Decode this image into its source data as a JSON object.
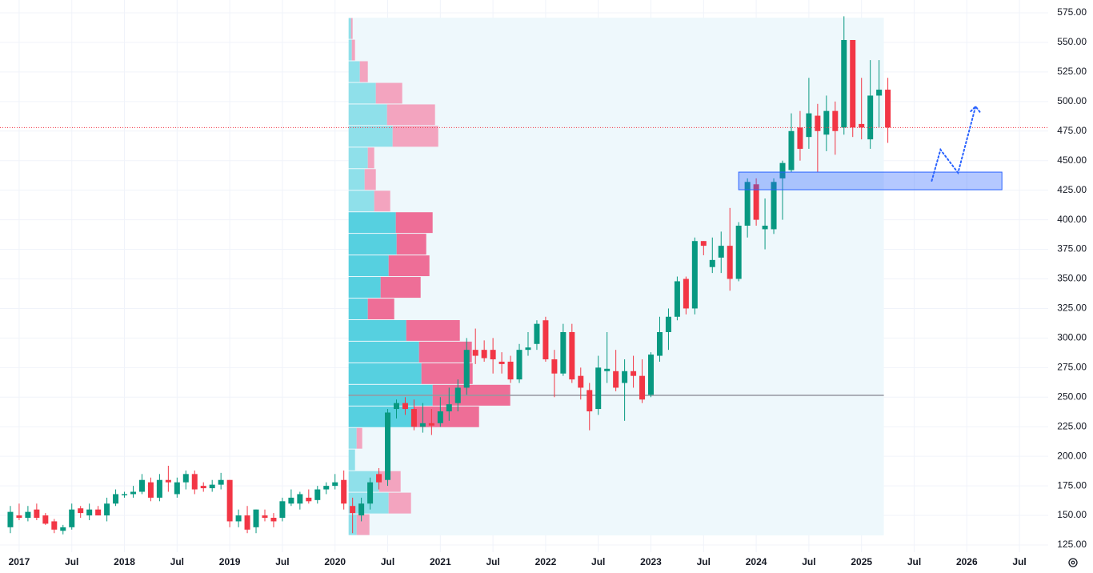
{
  "chart_data": {
    "type": "candlestick",
    "x": [
      "2016-12",
      "2017-01",
      "2017-02",
      "2017-03",
      "2017-04",
      "2017-05",
      "2017-06",
      "2017-07",
      "2017-08",
      "2017-09",
      "2017-10",
      "2017-11",
      "2017-12",
      "2018-01",
      "2018-02",
      "2018-03",
      "2018-04",
      "2018-05",
      "2018-06",
      "2018-07",
      "2018-08",
      "2018-09",
      "2018-10",
      "2018-11",
      "2018-12",
      "2019-01",
      "2019-02",
      "2019-03",
      "2019-04",
      "2019-05",
      "2019-06",
      "2019-07",
      "2019-08",
      "2019-09",
      "2019-10",
      "2019-11",
      "2019-12",
      "2020-01",
      "2020-02",
      "2020-03",
      "2020-04",
      "2020-05",
      "2020-06",
      "2020-07",
      "2020-08",
      "2020-09",
      "2020-10",
      "2020-11",
      "2020-12",
      "2021-01",
      "2021-02",
      "2021-03",
      "2021-04",
      "2021-05",
      "2021-06",
      "2021-07",
      "2021-08",
      "2021-09",
      "2021-10",
      "2021-11",
      "2021-12",
      "2022-01",
      "2022-02",
      "2022-03",
      "2022-04",
      "2022-05",
      "2022-06",
      "2022-07",
      "2022-08",
      "2022-09",
      "2022-10",
      "2022-11",
      "2022-12",
      "2023-01",
      "2023-02",
      "2023-03",
      "2023-04",
      "2023-05",
      "2023-06",
      "2023-07",
      "2023-08",
      "2023-09",
      "2023-10",
      "2023-11",
      "2023-12",
      "2024-01",
      "2024-02",
      "2024-03",
      "2024-04",
      "2024-05",
      "2024-06",
      "2024-07",
      "2024-08",
      "2024-09",
      "2024-10",
      "2024-11",
      "2024-12",
      "2025-01",
      "2025-02",
      "2025-03",
      "2025-04"
    ],
    "open": [
      140,
      150,
      148,
      155,
      150,
      145,
      137,
      140,
      156,
      150,
      155,
      150,
      160,
      167,
      168,
      170,
      178,
      165,
      180,
      168,
      178,
      185,
      175,
      173,
      176,
      180,
      145,
      150,
      140,
      150,
      148,
      148,
      160,
      160,
      165,
      163,
      172,
      175,
      180,
      158,
      150,
      160,
      185,
      180,
      240,
      245,
      240,
      225,
      228,
      228,
      238,
      245,
      258,
      290,
      290,
      290,
      280,
      280,
      265,
      290,
      295,
      315,
      282,
      270,
      305,
      268,
      256,
      240,
      272,
      272,
      262,
      272,
      268,
      252,
      285,
      305,
      318,
      350,
      325,
      382,
      360,
      368,
      378,
      350,
      395,
      430,
      392,
      392,
      435,
      442,
      478,
      470,
      488,
      472,
      492,
      478,
      552,
      481,
      468,
      505,
      510
    ],
    "high": [
      158,
      160,
      158,
      160,
      152,
      147,
      142,
      160,
      158,
      160,
      158,
      165,
      172,
      170,
      175,
      185,
      182,
      185,
      192,
      182,
      188,
      188,
      178,
      180,
      186,
      180,
      155,
      158,
      155,
      155,
      152,
      165,
      172,
      170,
      172,
      175,
      178,
      185,
      188,
      165,
      165,
      182,
      190,
      240,
      248,
      250,
      248,
      245,
      240,
      250,
      258,
      265,
      300,
      308,
      298,
      300,
      288,
      285,
      295,
      305,
      315,
      318,
      290,
      312,
      312,
      275,
      262,
      285,
      305,
      290,
      282,
      285,
      282,
      288,
      318,
      325,
      352,
      352,
      385,
      382,
      385,
      390,
      410,
      398,
      435,
      435,
      418,
      435,
      450,
      490,
      492,
      520,
      498,
      505,
      500,
      572,
      552,
      520,
      535,
      535,
      520
    ],
    "low": [
      135,
      146,
      145,
      146,
      142,
      135,
      134,
      138,
      148,
      146,
      150,
      145,
      158,
      165,
      165,
      168,
      162,
      162,
      170,
      165,
      172,
      168,
      170,
      170,
      172,
      140,
      140,
      135,
      135,
      145,
      140,
      145,
      158,
      155,
      160,
      160,
      168,
      172,
      155,
      135,
      145,
      155,
      172,
      175,
      232,
      235,
      222,
      220,
      218,
      225,
      230,
      238,
      252,
      278,
      280,
      270,
      270,
      262,
      262,
      285,
      290,
      280,
      250,
      268,
      262,
      248,
      222,
      235,
      262,
      255,
      230,
      258,
      245,
      250,
      280,
      290,
      315,
      320,
      320,
      370,
      355,
      355,
      340,
      348,
      385,
      395,
      375,
      388,
      400,
      440,
      450,
      460,
      440,
      458,
      455,
      472,
      470,
      468,
      460,
      478,
      465
    ],
    "close": [
      153,
      148,
      153,
      148,
      143,
      138,
      140,
      155,
      152,
      155,
      150,
      160,
      168,
      168,
      170,
      180,
      165,
      180,
      178,
      178,
      185,
      172,
      173,
      176,
      180,
      145,
      150,
      138,
      155,
      148,
      145,
      162,
      165,
      168,
      162,
      172,
      175,
      178,
      160,
      152,
      160,
      178,
      178,
      237,
      245,
      240,
      225,
      228,
      226,
      238,
      244,
      258,
      290,
      285,
      283,
      282,
      278,
      265,
      290,
      292,
      312,
      282,
      270,
      305,
      265,
      258,
      238,
      275,
      274,
      258,
      272,
      268,
      248,
      286,
      305,
      318,
      348,
      325,
      382,
      378,
      366,
      378,
      350,
      395,
      432,
      400,
      395,
      432,
      448,
      475,
      460,
      490,
      475,
      492,
      475,
      552,
      478,
      478,
      505,
      510,
      478
    ],
    "up_color": "#089981",
    "down_color": "#f23645",
    "xlim": [
      "2016-11",
      "2026-10"
    ],
    "ylim": [
      125,
      575
    ],
    "xticks": [
      {
        "value": "2017-01",
        "label": "2017"
      },
      {
        "value": "2017-07",
        "label": "Jul"
      },
      {
        "value": "2018-01",
        "label": "2018"
      },
      {
        "value": "2018-07",
        "label": "Jul"
      },
      {
        "value": "2019-01",
        "label": "2019"
      },
      {
        "value": "2019-07",
        "label": "Jul"
      },
      {
        "value": "2020-01",
        "label": "2020"
      },
      {
        "value": "2020-07",
        "label": "Jul"
      },
      {
        "value": "2021-01",
        "label": "2021"
      },
      {
        "value": "2021-07",
        "label": "Jul"
      },
      {
        "value": "2022-01",
        "label": "2022"
      },
      {
        "value": "2022-07",
        "label": "Jul"
      },
      {
        "value": "2023-01",
        "label": "2023"
      },
      {
        "value": "2023-07",
        "label": "Jul"
      },
      {
        "value": "2024-01",
        "label": "2024"
      },
      {
        "value": "2024-07",
        "label": "Jul"
      },
      {
        "value": "2025-01",
        "label": "2025"
      },
      {
        "value": "2025-07",
        "label": "Jul"
      },
      {
        "value": "2026-01",
        "label": "2026"
      },
      {
        "value": "2026-07",
        "label": "Jul"
      }
    ],
    "yticks": [
      {
        "value": 125,
        "label": "125.00"
      },
      {
        "value": 150,
        "label": "150.00"
      },
      {
        "value": 175,
        "label": "175.00"
      },
      {
        "value": 200,
        "label": "200.00"
      },
      {
        "value": 225,
        "label": "225.00"
      },
      {
        "value": 250,
        "label": "250.00"
      },
      {
        "value": 275,
        "label": "275.00"
      },
      {
        "value": 300,
        "label": "300.00"
      },
      {
        "value": 325,
        "label": "325.00"
      },
      {
        "value": 350,
        "label": "350.00"
      },
      {
        "value": 375,
        "label": "375.00"
      },
      {
        "value": 400,
        "label": "400.00"
      },
      {
        "value": 425,
        "label": "425.00"
      },
      {
        "value": 450,
        "label": "450.00"
      },
      {
        "value": 475,
        "label": "475.00"
      },
      {
        "value": 500,
        "label": "500.00"
      },
      {
        "value": 525,
        "label": "525.00"
      },
      {
        "value": 550,
        "label": "550.00"
      },
      {
        "value": 575,
        "label": "575.00"
      }
    ],
    "grid": true,
    "volume_profile": {
      "x_range": [
        "2020-02",
        "2025-04"
      ],
      "bins": [
        133.1,
        151.3,
        169.6,
        187.8,
        206.1,
        224.3,
        242.5,
        260.8,
        279,
        297.3,
        315.5,
        333.7,
        352,
        370.2,
        388.5,
        406.7,
        424.9,
        443.2,
        461.4,
        479.7,
        497.9,
        516.1,
        534.4,
        552.6,
        570.9
      ],
      "up": [
        10,
        50,
        38,
        8,
        10,
        82,
        105,
        91,
        88,
        72,
        24,
        40,
        50,
        60,
        59,
        32,
        20,
        24,
        55,
        48,
        34,
        14,
        4,
        3
      ],
      "down": [
        16,
        28,
        27,
        0,
        7,
        81,
        97,
        64,
        66,
        67,
        33,
        50,
        51,
        37,
        46,
        20,
        14,
        8,
        57,
        60,
        33,
        10,
        4,
        2
      ],
      "value_area": [
        224.3,
        406.7
      ],
      "poc": 251.5,
      "up_color": "#56d0e0",
      "down_color": "#ee6e97",
      "up_color_outside": "#8fe0ea",
      "down_color_outside": "#f3a4bf",
      "background": "#eef8fc",
      "poc_color": "#9598a1"
    },
    "zone": {
      "time": [
        "2023-11",
        "2026-05"
      ],
      "price": [
        425.4,
        440.3
      ],
      "color": "#2962ff"
    },
    "projection": {
      "x": [
        "2025-09",
        "2025-10",
        "2025-12",
        "2026-02"
      ],
      "y": [
        432.9,
        459.3,
        439.7,
        495.8
      ],
      "color": "#2962ff"
    }
  }
}
